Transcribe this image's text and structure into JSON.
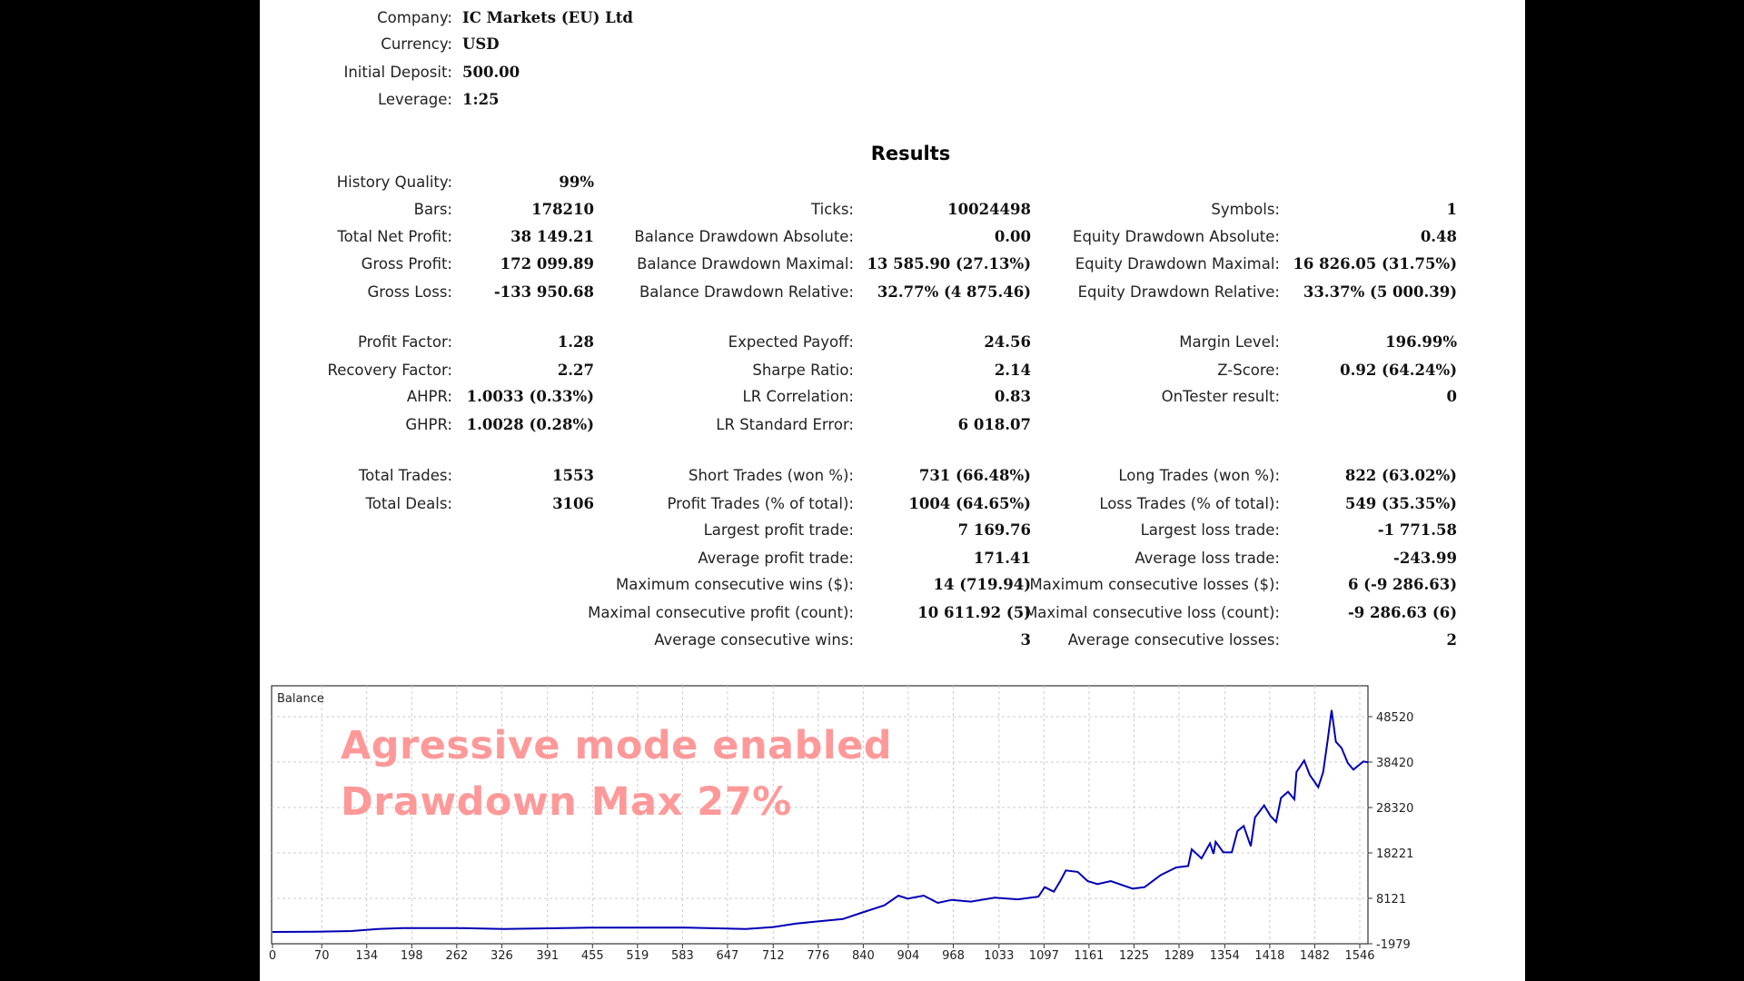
{
  "header": [
    {
      "label": "Company:",
      "value": "IC Markets (EU) Ltd"
    },
    {
      "label": "Currency:",
      "value": "USD"
    },
    {
      "label": "Initial Deposit:",
      "value": "500.00"
    },
    {
      "label": "Leverage:",
      "value": "1:25"
    }
  ],
  "results_title": "Results",
  "stats": [
    [
      {
        "label": "History Quality:",
        "value": "99%"
      },
      null,
      null
    ],
    [
      {
        "label": "Bars:",
        "value": "178210"
      },
      {
        "label": "Ticks:",
        "value": "10024498"
      },
      {
        "label": "Symbols:",
        "value": "1"
      }
    ],
    [
      {
        "label": "Total Net Profit:",
        "value": "38 149.21"
      },
      {
        "label": "Balance Drawdown Absolute:",
        "value": "0.00"
      },
      {
        "label": "Equity Drawdown Absolute:",
        "value": "0.48"
      }
    ],
    [
      {
        "label": "Gross Profit:",
        "value": "172 099.89"
      },
      {
        "label": "Balance Drawdown Maximal:",
        "value": "13 585.90 (27.13%)"
      },
      {
        "label": "Equity Drawdown Maximal:",
        "value": "16 826.05 (31.75%)"
      }
    ],
    [
      {
        "label": "Gross Loss:",
        "value": "-133 950.68"
      },
      {
        "label": "Balance Drawdown Relative:",
        "value": "32.77% (4 875.46)"
      },
      {
        "label": "Equity Drawdown Relative:",
        "value": "33.37% (5 000.39)"
      }
    ],
    [
      {
        "label": "Profit Factor:",
        "value": "1.28"
      },
      {
        "label": "Expected Payoff:",
        "value": "24.56"
      },
      {
        "label": "Margin Level:",
        "value": "196.99%"
      }
    ],
    [
      {
        "label": "Recovery Factor:",
        "value": "2.27"
      },
      {
        "label": "Sharpe Ratio:",
        "value": "2.14"
      },
      {
        "label": "Z-Score:",
        "value": "0.92 (64.24%)"
      }
    ],
    [
      {
        "label": "AHPR:",
        "value": "1.0033 (0.33%)"
      },
      {
        "label": "LR Correlation:",
        "value": "0.83"
      },
      {
        "label": "OnTester result:",
        "value": "0"
      }
    ],
    [
      {
        "label": "GHPR:",
        "value": "1.0028 (0.28%)"
      },
      {
        "label": "LR Standard Error:",
        "value": "6 018.07"
      },
      null
    ],
    [
      {
        "label": "Total Trades:",
        "value": "1553"
      },
      {
        "label": "Short Trades (won %):",
        "value": "731 (66.48%)"
      },
      {
        "label": "Long Trades (won %):",
        "value": "822 (63.02%)"
      }
    ],
    [
      {
        "label": "Total Deals:",
        "value": "3106"
      },
      {
        "label": "Profit Trades (% of total):",
        "value": "1004 (64.65%)"
      },
      {
        "label": "Loss Trades (% of total):",
        "value": "549 (35.35%)"
      }
    ],
    [
      null,
      {
        "label": "Largest profit trade:",
        "value": "7 169.76"
      },
      {
        "label": "Largest loss trade:",
        "value": "-1 771.58"
      }
    ],
    [
      null,
      {
        "label": "Average profit trade:",
        "value": "171.41"
      },
      {
        "label": "Average loss trade:",
        "value": "-243.99"
      }
    ],
    [
      null,
      {
        "label": "Maximum consecutive wins ($):",
        "value": "14 (719.94)"
      },
      {
        "label": "Maximum consecutive losses ($):",
        "value": "6 (-9 286.63)"
      }
    ],
    [
      null,
      {
        "label": "Maximal consecutive profit (count):",
        "value": "10 611.92 (5)"
      },
      {
        "label": "Maximal consecutive loss (count):",
        "value": "-9 286.63 (6)"
      }
    ],
    [
      null,
      {
        "label": "Average consecutive wins:",
        "value": "3"
      },
      {
        "label": "Average consecutive losses:",
        "value": "2"
      }
    ]
  ],
  "overlay": {
    "line1": "Agressive mode enabled",
    "line2": "Drawdown Max 27%",
    "color": "#ff9999"
  },
  "chart_data": {
    "type": "line",
    "title": "Balance",
    "xlabel": "",
    "ylabel": "",
    "line_color": "#0000b4",
    "xlim": [
      0,
      1558
    ],
    "ylim": [
      -1979,
      55389
    ],
    "x_ticks": [
      0,
      70,
      134,
      198,
      262,
      326,
      391,
      455,
      519,
      583,
      647,
      712,
      776,
      840,
      904,
      968,
      1033,
      1097,
      1161,
      1225,
      1289,
      1354,
      1418,
      1482,
      1546
    ],
    "y_ticks": [
      -1979,
      8121,
      18221,
      28320,
      38420,
      48520
    ],
    "grid": true,
    "series": [
      {
        "name": "Balance",
        "points": [
          [
            0,
            650
          ],
          [
            60,
            700
          ],
          [
            112,
            850
          ],
          [
            150,
            1300
          ],
          [
            185,
            1520
          ],
          [
            263,
            1520
          ],
          [
            329,
            1300
          ],
          [
            450,
            1600
          ],
          [
            580,
            1630
          ],
          [
            673,
            1300
          ],
          [
            712,
            1740
          ],
          [
            745,
            2520
          ],
          [
            811,
            3520
          ],
          [
            837,
            4890
          ],
          [
            870,
            6560
          ],
          [
            890,
            8720
          ],
          [
            903,
            8060
          ],
          [
            926,
            8720
          ],
          [
            946,
            7110
          ],
          [
            966,
            7780
          ],
          [
            993,
            7400
          ],
          [
            1027,
            8260
          ],
          [
            1060,
            7900
          ],
          [
            1089,
            8500
          ],
          [
            1098,
            10600
          ],
          [
            1111,
            9600
          ],
          [
            1120,
            11960
          ],
          [
            1128,
            14320
          ],
          [
            1145,
            14000
          ],
          [
            1159,
            11960
          ],
          [
            1173,
            11290
          ],
          [
            1192,
            11960
          ],
          [
            1223,
            10280
          ],
          [
            1240,
            10600
          ],
          [
            1263,
            13310
          ],
          [
            1285,
            14990
          ],
          [
            1302,
            15320
          ],
          [
            1307,
            19030
          ],
          [
            1321,
            17000
          ],
          [
            1333,
            20370
          ],
          [
            1338,
            18020
          ],
          [
            1341,
            20700
          ],
          [
            1352,
            18350
          ],
          [
            1364,
            18350
          ],
          [
            1372,
            23070
          ],
          [
            1381,
            24220
          ],
          [
            1391,
            19690
          ],
          [
            1397,
            26100
          ],
          [
            1410,
            28790
          ],
          [
            1419,
            26440
          ],
          [
            1427,
            25100
          ],
          [
            1434,
            30470
          ],
          [
            1444,
            31820
          ],
          [
            1453,
            30140
          ],
          [
            1456,
            36200
          ],
          [
            1467,
            38760
          ],
          [
            1475,
            35530
          ],
          [
            1487,
            32840
          ],
          [
            1494,
            36200
          ],
          [
            1500,
            42930
          ],
          [
            1506,
            49990
          ],
          [
            1512,
            42930
          ],
          [
            1520,
            41580
          ],
          [
            1529,
            38220
          ],
          [
            1537,
            36740
          ],
          [
            1551,
            38560
          ],
          [
            1558,
            38360
          ]
        ]
      }
    ]
  }
}
